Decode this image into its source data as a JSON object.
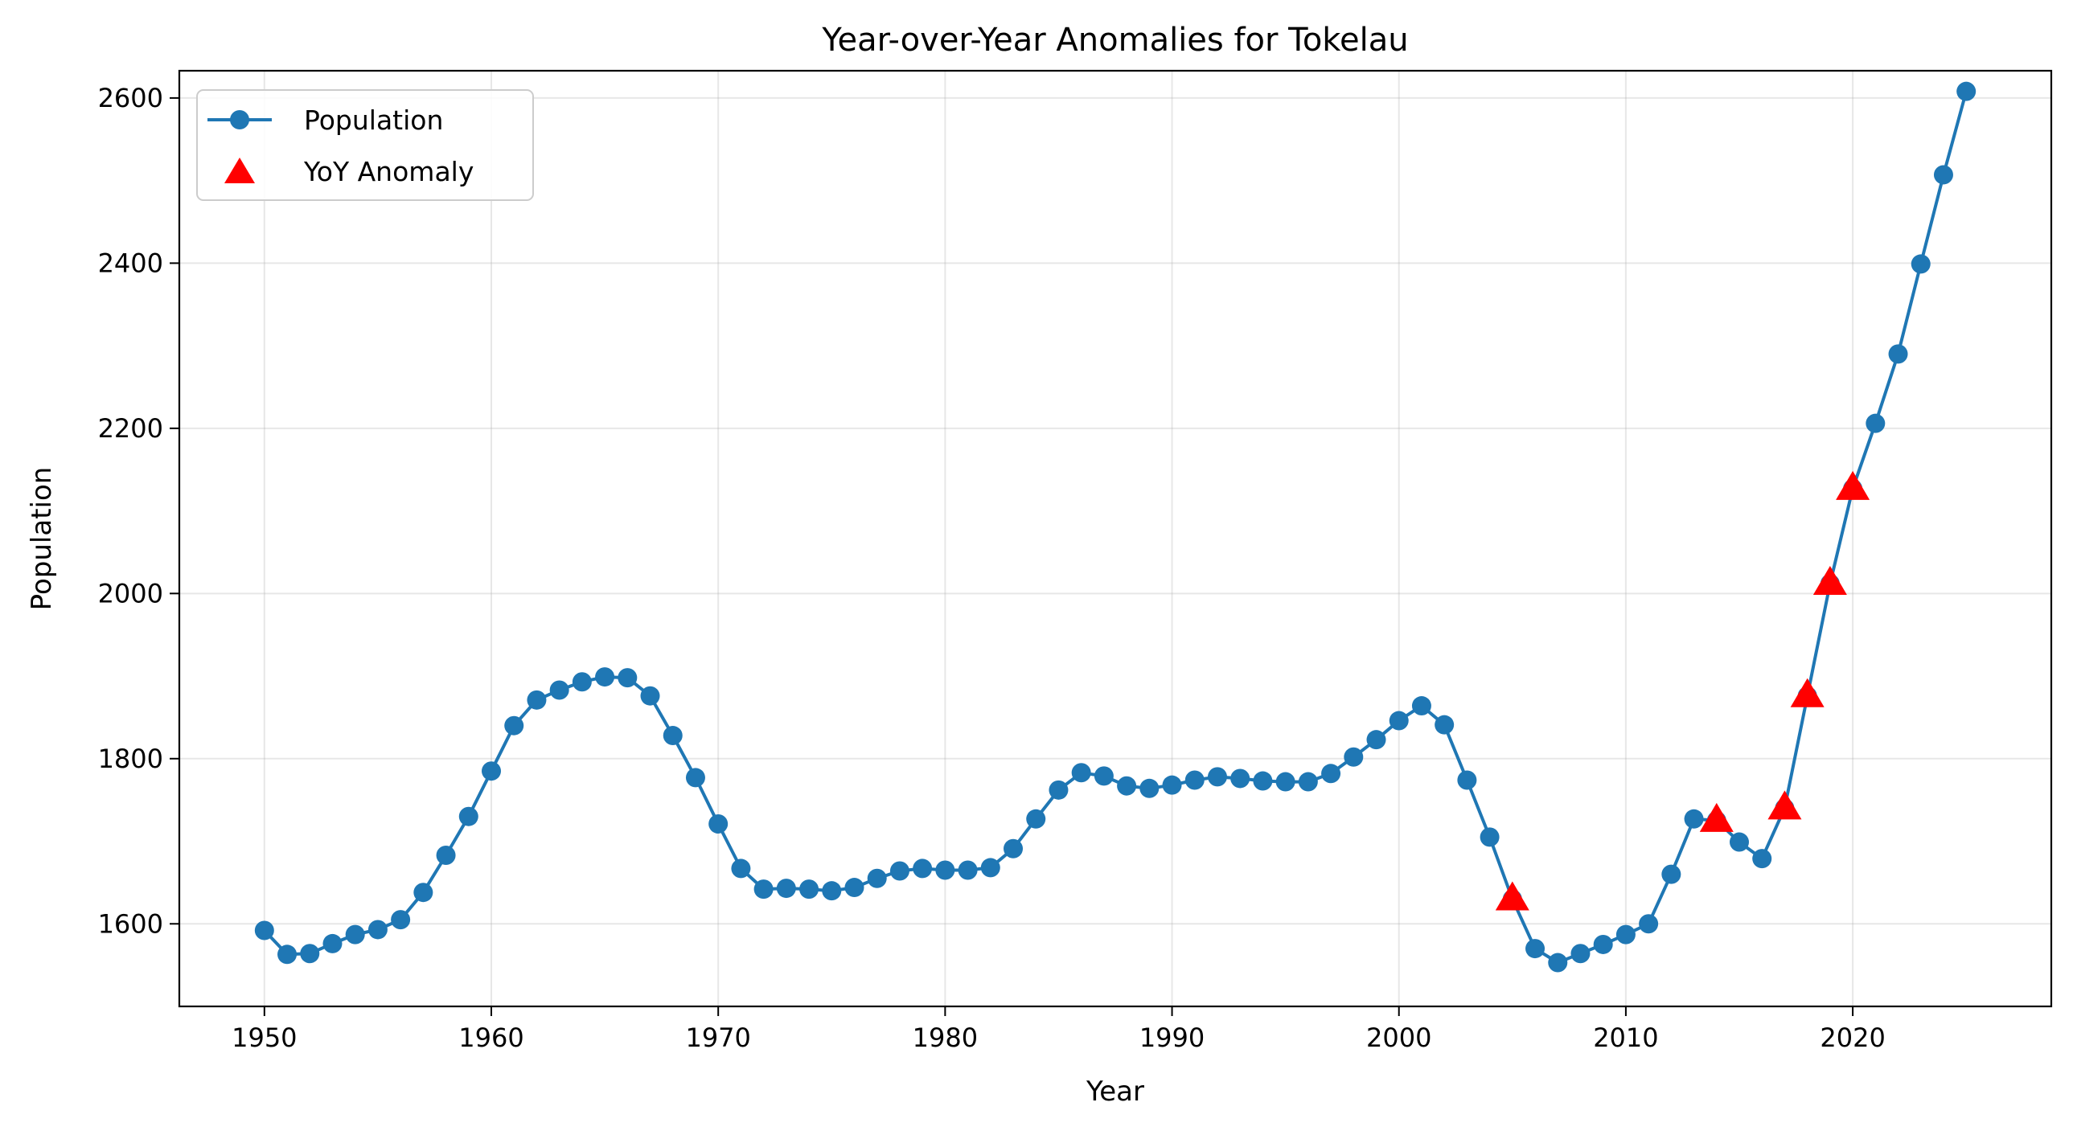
{
  "chart_data": {
    "type": "line",
    "title": "Year-over-Year Anomalies for Tokelau",
    "xlabel": "Year",
    "ylabel": "Population",
    "xlim": [
      1946.25,
      2028.75
    ],
    "ylim": [
      1500,
      2633
    ],
    "xticks": [
      1950,
      1960,
      1970,
      1980,
      1990,
      2000,
      2010,
      2020
    ],
    "yticks": [
      1600,
      1800,
      2000,
      2200,
      2400,
      2600
    ],
    "grid": true,
    "legend_position": "top-left",
    "colors": {
      "line": "#1f77b4",
      "anomaly": "#ff0000"
    },
    "series": [
      {
        "name": "Population",
        "marker": "circle",
        "x": [
          1950,
          1951,
          1952,
          1953,
          1954,
          1955,
          1956,
          1957,
          1958,
          1959,
          1960,
          1961,
          1962,
          1963,
          1964,
          1965,
          1966,
          1967,
          1968,
          1969,
          1970,
          1971,
          1972,
          1973,
          1974,
          1975,
          1976,
          1977,
          1978,
          1979,
          1980,
          1981,
          1982,
          1983,
          1984,
          1985,
          1986,
          1987,
          1988,
          1989,
          1990,
          1991,
          1992,
          1993,
          1994,
          1995,
          1996,
          1997,
          1998,
          1999,
          2000,
          2001,
          2002,
          2003,
          2004,
          2005,
          2006,
          2007,
          2008,
          2009,
          2010,
          2011,
          2012,
          2013,
          2014,
          2015,
          2016,
          2017,
          2018,
          2019,
          2020,
          2021,
          2022,
          2023,
          2024,
          2025
        ],
        "y": [
          1592,
          1563,
          1564,
          1576,
          1587,
          1593,
          1605,
          1638,
          1683,
          1730,
          1785,
          1840,
          1871,
          1883,
          1893,
          1899,
          1898,
          1876,
          1828,
          1777,
          1721,
          1667,
          1642,
          1643,
          1642,
          1640,
          1644,
          1655,
          1664,
          1667,
          1665,
          1665,
          1668,
          1691,
          1727,
          1762,
          1783,
          1779,
          1767,
          1764,
          1768,
          1774,
          1778,
          1776,
          1773,
          1772,
          1772,
          1782,
          1802,
          1823,
          1846,
          1864,
          1841,
          1774,
          1705,
          1630,
          1570,
          1553,
          1564,
          1575,
          1587,
          1600,
          1660,
          1727,
          1725,
          1699,
          1679,
          1740,
          1876,
          2012,
          2127,
          2206,
          2290,
          2399,
          2507,
          2608
        ]
      },
      {
        "name": "YoY Anomaly",
        "marker": "triangle",
        "x": [
          2005,
          2014,
          2017,
          2018,
          2019,
          2020
        ],
        "y": [
          1630,
          1725,
          1740,
          1876,
          2012,
          2127
        ]
      }
    ]
  }
}
